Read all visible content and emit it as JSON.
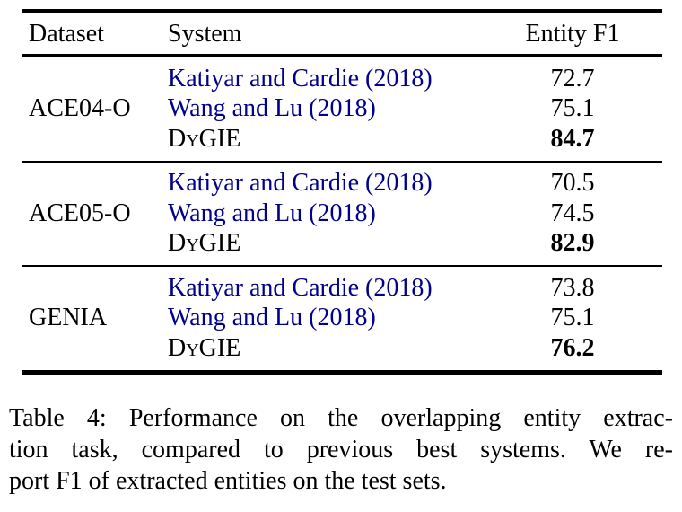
{
  "header": {
    "dataset": "Dataset",
    "system": "System",
    "entity_f1": "Entity F1"
  },
  "groups": [
    {
      "dataset": "ACE04-O",
      "rows": [
        {
          "system": "Katiyar and Cardie (2018)",
          "f1": "72.7"
        },
        {
          "system": "Wang and Lu (2018)",
          "f1": "75.1"
        },
        {
          "system": "DyGIE",
          "f1": "84.7"
        }
      ]
    },
    {
      "dataset": "ACE05-O",
      "rows": [
        {
          "system": "Katiyar and Cardie (2018)",
          "f1": "70.5"
        },
        {
          "system": "Wang and Lu (2018)",
          "f1": "74.5"
        },
        {
          "system": "DyGIE",
          "f1": "82.9"
        }
      ]
    },
    {
      "dataset": "GENIA",
      "rows": [
        {
          "system": "Katiyar and Cardie (2018)",
          "f1": "73.8"
        },
        {
          "system": "Wang and Lu (2018)",
          "f1": "75.1"
        },
        {
          "system": "DyGIE",
          "f1": "76.2"
        }
      ]
    }
  ],
  "caption": {
    "lines": [
      "Table 4: Performance on the overlapping entity extrac-",
      "tion task, compared to previous best systems. We re-",
      "port F1 of extracted entities on the test sets."
    ]
  },
  "colors": {
    "citation_link": "#00008B",
    "text": "#000000",
    "background": "#FFFFFF",
    "rule": "#000000"
  }
}
